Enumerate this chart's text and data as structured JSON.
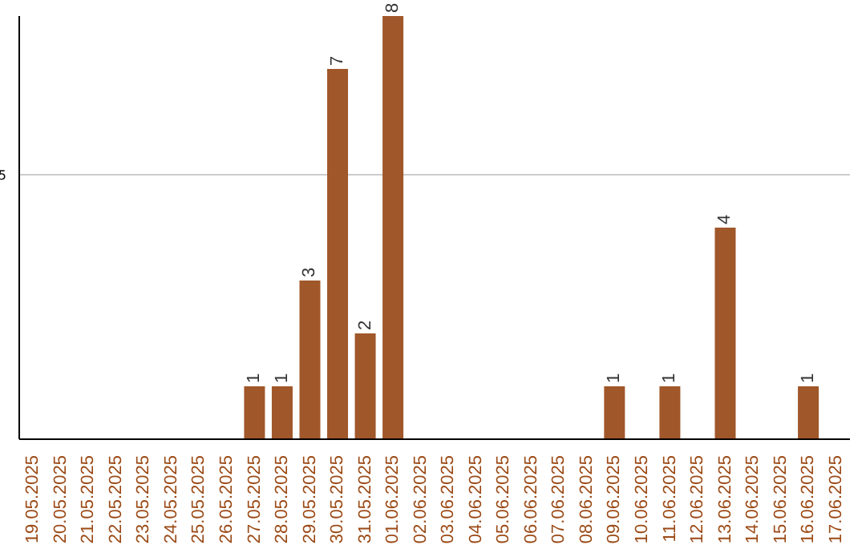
{
  "chart_data": {
    "type": "bar",
    "categories": [
      "19.05.2025",
      "20.05.2025",
      "21.05.2025",
      "22.05.2025",
      "23.05.2025",
      "24.05.2025",
      "25.05.2025",
      "26.05.2025",
      "27.05.2025",
      "28.05.2025",
      "29.05.2025",
      "30.05.2025",
      "31.05.2025",
      "01.06.2025",
      "02.06.2025",
      "03.06.2025",
      "04.06.2025",
      "05.06.2025",
      "06.06.2025",
      "07.06.2025",
      "08.06.2025",
      "09.06.2025",
      "10.06.2025",
      "11.06.2025",
      "12.06.2025",
      "13.06.2025",
      "14.06.2025",
      "15.06.2025",
      "16.06.2025",
      "17.06.2025"
    ],
    "values": [
      0,
      0,
      0,
      0,
      0,
      0,
      0,
      0,
      1,
      1,
      3,
      7,
      2,
      8,
      0,
      0,
      0,
      0,
      0,
      0,
      0,
      1,
      0,
      1,
      0,
      4,
      0,
      0,
      1,
      0
    ],
    "value_labels": [
      null,
      null,
      null,
      null,
      null,
      null,
      null,
      null,
      "1",
      "1",
      "3",
      "7",
      "2",
      "8",
      null,
      null,
      null,
      null,
      null,
      null,
      null,
      "1",
      null,
      "1",
      null,
      "4",
      null,
      null,
      "1",
      null
    ],
    "color": "#a0572a",
    "ylim": [
      0,
      8
    ],
    "yticks": [
      5
    ],
    "grid": "y"
  }
}
